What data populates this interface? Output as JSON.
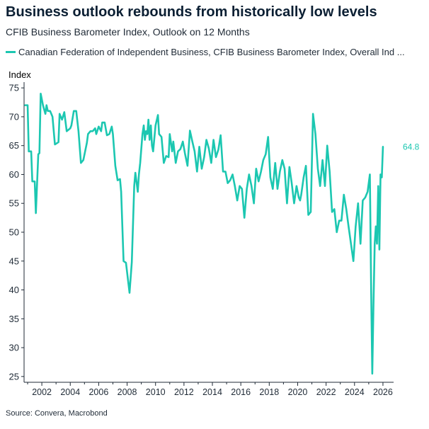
{
  "colors": {
    "series": "#1cc7b1",
    "axis": "#1f2a36",
    "text": "#1f2a36",
    "title": "#0b1f33"
  },
  "source": "Source: Convera, Macrobond",
  "chart_data": {
    "type": "line",
    "title": "Business outlook rebounds from historically low levels",
    "subtitle": "CFIB Business Barometer Index, Outlook on 12 Months",
    "ylabel": "Index",
    "xlabel": "",
    "ylim": [
      24,
      76
    ],
    "xlim": [
      2000.75,
      2026.75
    ],
    "yticks": [
      25,
      30,
      35,
      40,
      45,
      50,
      55,
      60,
      65,
      70,
      75
    ],
    "xticks": [
      2002,
      2004,
      2006,
      2008,
      2010,
      2012,
      2014,
      2016,
      2018,
      2020,
      2022,
      2024,
      2026
    ],
    "grid": false,
    "legend_position": "top-left",
    "end_label": "64.8",
    "series": [
      {
        "name": "Canadian Federation of Independent Business, CFIB Business Barometer Index, Overall Ind ...",
        "x": [
          2000.83,
          2001.0,
          2001.08,
          2001.25,
          2001.33,
          2001.5,
          2001.58,
          2001.75,
          2001.83,
          2001.92,
          2002.08,
          2002.25,
          2002.33,
          2002.42,
          2002.58,
          2002.75,
          2002.92,
          2003.17,
          2003.25,
          2003.42,
          2003.58,
          2003.75,
          2004.0,
          2004.08,
          2004.25,
          2004.42,
          2004.58,
          2004.75,
          2004.92,
          2005.17,
          2005.25,
          2005.42,
          2005.58,
          2005.75,
          2005.83,
          2006.0,
          2006.17,
          2006.25,
          2006.42,
          2006.58,
          2006.75,
          2006.92,
          2007.0,
          2007.17,
          2007.33,
          2007.5,
          2007.58,
          2007.75,
          2007.92,
          2008.17,
          2008.33,
          2008.5,
          2008.58,
          2008.75,
          2008.83,
          2008.92,
          2009.0,
          2009.08,
          2009.17,
          2009.25,
          2009.33,
          2009.42,
          2009.5,
          2009.58,
          2009.67,
          2009.75,
          2009.83,
          2010.0,
          2010.17,
          2010.25,
          2010.42,
          2010.58,
          2010.75,
          2010.92,
          2011.0,
          2011.17,
          2011.25,
          2011.42,
          2011.58,
          2011.75,
          2011.92,
          2012.08,
          2012.25,
          2012.42,
          2012.58,
          2012.75,
          2012.92,
          2013.08,
          2013.25,
          2013.42,
          2013.58,
          2013.75,
          2013.92,
          2014.08,
          2014.25,
          2014.42,
          2014.58,
          2014.75,
          2014.92,
          2015.08,
          2015.25,
          2015.42,
          2015.58,
          2015.75,
          2015.92,
          2016.08,
          2016.25,
          2016.42,
          2016.58,
          2016.75,
          2016.92,
          2017.08,
          2017.25,
          2017.42,
          2017.58,
          2017.75,
          2017.92,
          2018.08,
          2018.25,
          2018.42,
          2018.58,
          2018.75,
          2018.92,
          2019.08,
          2019.25,
          2019.42,
          2019.58,
          2019.75,
          2019.92,
          2020.08,
          2020.17,
          2020.25,
          2020.42,
          2020.58,
          2020.75,
          2020.92,
          2021.08,
          2021.25,
          2021.42,
          2021.58,
          2021.75,
          2021.92,
          2022.08,
          2022.25,
          2022.42,
          2022.58,
          2022.75,
          2022.92,
          2023.08,
          2023.25,
          2023.42,
          2023.58,
          2023.75,
          2023.92,
          2024.08,
          2024.25,
          2024.42,
          2024.58,
          2024.75,
          2024.92,
          2025.08,
          2025.17,
          2025.25,
          2025.33,
          2025.42,
          2025.5,
          2025.58,
          2025.67,
          2025.75,
          2025.83,
          2025.92,
          2026.0
        ],
        "values": [
          72,
          72,
          64,
          64,
          58.8,
          58.8,
          53.3,
          63.5,
          63.7,
          74,
          72,
          70.5,
          72,
          71,
          71,
          70,
          65.2,
          65.6,
          70.5,
          69.5,
          70.8,
          67.5,
          68,
          68.5,
          71,
          71,
          67.5,
          62,
          62.5,
          65.5,
          67,
          67.5,
          67.5,
          68,
          67,
          68.3,
          67.5,
          69,
          69,
          66.8,
          67,
          68.3,
          67,
          61.5,
          59,
          59.2,
          57,
          45,
          44.7,
          39.5,
          44.8,
          58,
          60.3,
          57,
          60,
          62,
          64.5,
          67,
          68.5,
          66,
          67.5,
          67,
          69.5,
          66,
          68.5,
          65,
          64,
          68.5,
          70.3,
          67,
          66.5,
          62,
          63.2,
          63,
          67,
          64,
          65.7,
          62,
          64,
          64.4,
          65.7,
          63.5,
          61.5,
          67.6,
          65.8,
          64,
          60.5,
          64.8,
          61,
          63,
          66,
          64.5,
          62,
          66,
          63,
          64.3,
          66.8,
          60.5,
          60.5,
          58.5,
          59,
          60,
          58,
          55.5,
          58,
          57.5,
          52.5,
          57.5,
          60,
          58,
          55,
          61,
          58.8,
          60.5,
          62.5,
          63.5,
          66.5,
          59.5,
          57.5,
          62,
          57.5,
          60.5,
          62.5,
          61,
          55,
          61.3,
          58.5,
          55,
          58,
          56,
          55.5,
          56.5,
          59.5,
          61.5,
          53,
          53.5,
          70.5,
          67,
          61,
          58,
          62.5,
          58,
          65,
          60.5,
          53.5,
          54,
          50,
          52,
          52,
          56.5,
          54,
          51,
          48,
          45,
          51,
          55,
          48,
          55.5,
          56,
          57,
          60,
          40,
          25.5,
          37,
          48,
          51,
          48,
          58,
          47,
          60,
          59.5,
          64.8
        ]
      }
    ]
  }
}
